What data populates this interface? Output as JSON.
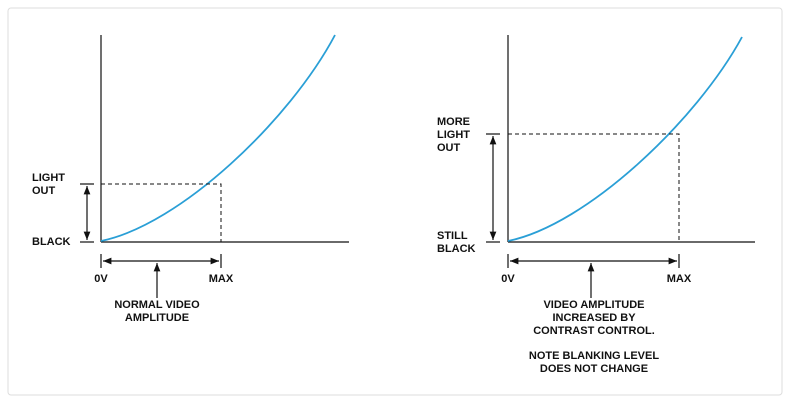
{
  "left": {
    "y_labels": {
      "top": [
        "LIGHT",
        "OUT"
      ],
      "bottom": [
        "BLACK"
      ]
    },
    "x_labels": [
      "0V",
      "MAX"
    ],
    "caption": [
      "NORMAL VIDEO",
      "AMPLITUDE"
    ]
  },
  "right": {
    "y_labels": {
      "top": [
        "MORE",
        "LIGHT",
        "OUT"
      ],
      "bottom": [
        "STILL",
        "BLACK"
      ]
    },
    "x_labels": [
      "0V",
      "MAX"
    ],
    "caption": [
      "VIDEO AMPLITUDE",
      "INCREASED BY",
      "CONTRAST CONTROL."
    ],
    "note": [
      "NOTE BLANKING LEVEL",
      "DOES NOT CHANGE"
    ]
  }
}
